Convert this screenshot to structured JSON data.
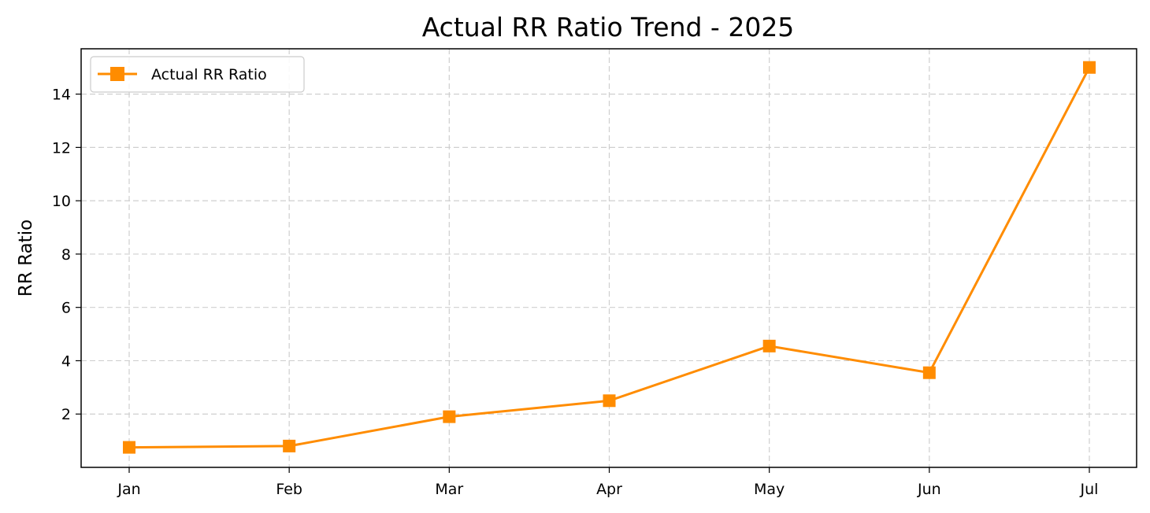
{
  "chart_data": {
    "type": "line",
    "title": "Actual RR Ratio Trend - 2025",
    "xlabel": "",
    "ylabel": "RR Ratio",
    "categories": [
      "Jan",
      "Feb",
      "Mar",
      "Apr",
      "May",
      "Jun",
      "Jul"
    ],
    "series": [
      {
        "name": "Actual RR Ratio",
        "values": [
          0.75,
          0.8,
          1.9,
          2.5,
          4.55,
          3.55,
          15.0
        ],
        "color": "#ff8c00",
        "marker": "square"
      }
    ],
    "ylim": [
      0.0,
      15.7
    ],
    "yticks": [
      2,
      4,
      6,
      8,
      10,
      12,
      14
    ],
    "grid": true,
    "legend_position": "top-left"
  }
}
